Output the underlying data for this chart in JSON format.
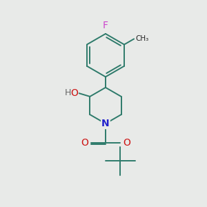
{
  "background_color": "#e8eae8",
  "bond_color": "#2d7a6a",
  "bond_width": 1.4,
  "figsize": [
    3.0,
    3.0
  ],
  "dpi": 100,
  "F_color": "#cc44cc",
  "N_color": "#2222cc",
  "O_color": "#cc1111",
  "H_color": "#666666",
  "text_fontsize": 10,
  "label_fontsize": 9,
  "xlim": [
    0,
    10
  ],
  "ylim": [
    0,
    10
  ]
}
